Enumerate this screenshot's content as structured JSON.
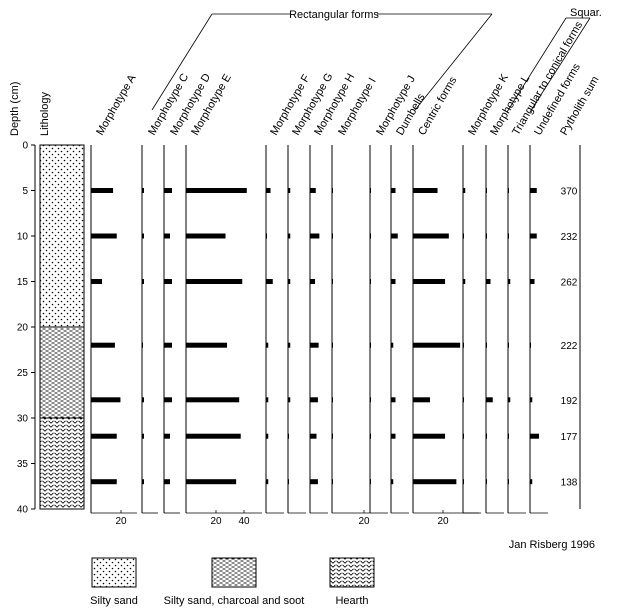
{
  "chart_data": {
    "type": "bar",
    "orientation": "horizontal",
    "group_labels": [
      "Rectangular forms",
      "Squar."
    ],
    "depth_axis": {
      "label": "Depth (cm)",
      "ylim": [
        0,
        40
      ],
      "ticks": [
        "0",
        "5",
        "10",
        "15",
        "20",
        "25",
        "30",
        "35",
        "40"
      ]
    },
    "lithology": {
      "label": "Lithology",
      "units": [
        {
          "name": "Silty sand",
          "from": 0,
          "to": 20,
          "pattern": "dots"
        },
        {
          "name": "Silty sand, charcoal and soot",
          "from": 20,
          "to": 30,
          "pattern": "dashes"
        },
        {
          "name": "Hearth",
          "from": 30,
          "to": 40,
          "pattern": "vees"
        }
      ]
    },
    "sample_depths": [
      5,
      10,
      15,
      22,
      28,
      32,
      37
    ],
    "series": [
      {
        "name": "Morphotype A",
        "xlim": [
          0,
          25
        ],
        "tick_label": "20",
        "values": [
          12,
          14,
          6,
          13,
          16,
          14,
          14
        ]
      },
      {
        "name": "Morphotype C",
        "xlim": [
          0,
          8
        ],
        "tick_label": "",
        "values": [
          1,
          1,
          1,
          0,
          1,
          1,
          1
        ]
      },
      {
        "name": "Morphotype D",
        "xlim": [
          0,
          8
        ],
        "tick_label": "",
        "values": [
          4,
          3,
          4,
          4,
          4,
          3,
          3
        ]
      },
      {
        "name": "Morphotype E",
        "xlim": [
          0,
          50
        ],
        "tick_label": "20   40",
        "values": [
          40,
          26,
          37,
          27,
          35,
          36,
          33
        ]
      },
      {
        "name": "Morphotype F",
        "xlim": [
          0,
          8
        ],
        "tick_label": "",
        "values": [
          2,
          0,
          3,
          1,
          1,
          1,
          1
        ]
      },
      {
        "name": "Morphotype G",
        "xlim": [
          0,
          8
        ],
        "tick_label": "",
        "values": [
          1,
          1,
          1,
          1,
          1,
          0,
          0
        ]
      },
      {
        "name": "Morphotype H",
        "xlim": [
          0,
          25
        ],
        "tick_label": "",
        "values": [
          8,
          13,
          7,
          12,
          11,
          9,
          11
        ]
      },
      {
        "name": "Morphotype I",
        "xlim": [
          0,
          8
        ],
        "tick_label": "20",
        "values": [
          0,
          0,
          0,
          0,
          0,
          0,
          0
        ]
      },
      {
        "name": "Morphotype J",
        "xlim": [
          0,
          8
        ],
        "tick_label": "",
        "values": [
          0,
          0,
          0,
          0,
          0,
          0,
          0
        ]
      },
      {
        "name": "Dumbells",
        "xlim": [
          0,
          8
        ],
        "tick_label": "",
        "values": [
          2,
          3,
          2,
          1,
          2,
          2,
          1
        ]
      },
      {
        "name": "Centric forms",
        "xlim": [
          0,
          35
        ],
        "tick_label": "20",
        "values": [
          13,
          19,
          17,
          25,
          9,
          17,
          23
        ]
      },
      {
        "name": "Morphotype K",
        "xlim": [
          0,
          8
        ],
        "tick_label": "",
        "values": [
          1,
          0,
          1,
          0,
          0,
          0,
          0
        ]
      },
      {
        "name": "Morphotype L",
        "xlim": [
          0,
          8
        ],
        "tick_label": "",
        "values": [
          0,
          0,
          2,
          0,
          3,
          0,
          0
        ]
      },
      {
        "name": "Triangular to conical forms",
        "xlim": [
          0,
          8
        ],
        "tick_label": "",
        "values": [
          0,
          0,
          1,
          0,
          1,
          0,
          0
        ]
      },
      {
        "name": "Undefined forms",
        "xlim": [
          0,
          8
        ],
        "tick_label": "",
        "values": [
          3,
          3,
          2,
          0,
          1,
          4,
          1
        ]
      }
    ],
    "phytolith_sum": {
      "name": "Pytholith sum",
      "values": [
        "370",
        "232",
        "262",
        "222",
        "192",
        "177",
        "138"
      ]
    },
    "author": "Jan Risberg 1996"
  }
}
